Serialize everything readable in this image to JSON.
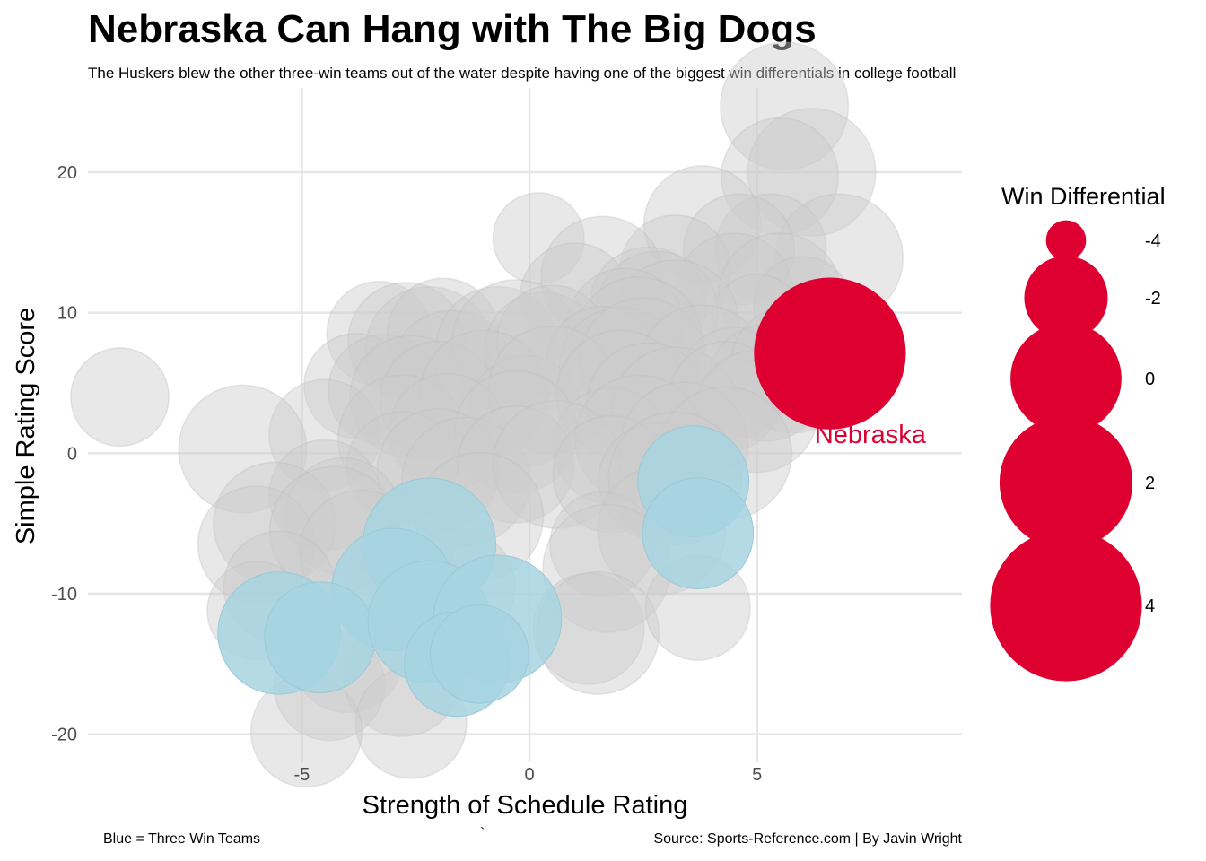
{
  "chart_data": {
    "type": "scatter",
    "title": "Nebraska Can Hang with The Big Dogs",
    "subtitle": "The Huskers blew the other three-win teams out of the water despite having one of the biggest win differentials in college football",
    "xlabel": "Strength of Schedule Rating",
    "ylabel": "Simple Rating Score",
    "xlim": [
      -9.7,
      9.5
    ],
    "ylim": [
      -22,
      26
    ],
    "x_ticks": [
      -5,
      0,
      5
    ],
    "y_ticks": [
      -20,
      -10,
      0,
      10,
      20
    ],
    "grid": true,
    "legend": {
      "title": "Win Differential",
      "placement": "right",
      "entries": [
        {
          "label": "-4",
          "value": -4
        },
        {
          "label": "-2",
          "value": -2
        },
        {
          "label": "0",
          "value": 0
        },
        {
          "label": "2",
          "value": 2
        },
        {
          "label": "4",
          "value": 4
        }
      ]
    },
    "colors": {
      "other": "#cccccc",
      "three_win": "#a6d3e0",
      "nebraska": "#dd0031"
    },
    "series": [
      {
        "group": "other",
        "points": [
          {
            "x": 5.6,
            "y": 24.7,
            "w": 1.5
          },
          {
            "x": 6.2,
            "y": 20.0,
            "w": 1.5
          },
          {
            "x": 5.5,
            "y": 19.7,
            "w": 0.5
          },
          {
            "x": 6.8,
            "y": 13.9,
            "w": 1.5
          },
          {
            "x": 3.8,
            "y": 16.3,
            "w": 0.5
          },
          {
            "x": 5.3,
            "y": 14.5,
            "w": 0.0
          },
          {
            "x": 0.2,
            "y": 15.3,
            "w": -1.5
          },
          {
            "x": 4.6,
            "y": 14.5,
            "w": 0.0
          },
          {
            "x": 3.2,
            "y": 13.0,
            "w": 0.0
          },
          {
            "x": 1.6,
            "y": 12.5,
            "w": 1.0
          },
          {
            "x": 4.5,
            "y": 11.5,
            "w": 0.5
          },
          {
            "x": 5.5,
            "y": 11.3,
            "w": 1.0
          },
          {
            "x": 6.0,
            "y": 10.5,
            "w": -1.0
          },
          {
            "x": 5.0,
            "y": 9.5,
            "w": -1.5
          },
          {
            "x": 1.0,
            "y": 11.0,
            "w": 0.0
          },
          {
            "x": 2.6,
            "y": 10.5,
            "w": 0.5
          },
          {
            "x": 2.8,
            "y": 10.0,
            "w": 1.0
          },
          {
            "x": 3.2,
            "y": 9.2,
            "w": 1.5
          },
          {
            "x": 2.1,
            "y": 9.0,
            "w": 0.5
          },
          {
            "x": 2.4,
            "y": 8.0,
            "w": 1.5
          },
          {
            "x": -3.3,
            "y": 8.5,
            "w": -0.5
          },
          {
            "x": -2.7,
            "y": 8.0,
            "w": 0.5
          },
          {
            "x": -2.2,
            "y": 7.3,
            "w": 1.5
          },
          {
            "x": -1.9,
            "y": 8.5,
            "w": 0.0
          },
          {
            "x": -1.7,
            "y": 5.8,
            "w": 1.0
          },
          {
            "x": -0.7,
            "y": 7.5,
            "w": 1.0
          },
          {
            "x": -0.3,
            "y": 7.8,
            "w": 1.5
          },
          {
            "x": 0.3,
            "y": 7.3,
            "w": 0.5
          },
          {
            "x": 0.5,
            "y": 8.0,
            "w": 0.0
          },
          {
            "x": 1.6,
            "y": 6.5,
            "w": 0.0
          },
          {
            "x": 2.0,
            "y": 6.0,
            "w": 1.0
          },
          {
            "x": 2.5,
            "y": 6.5,
            "w": 1.5
          },
          {
            "x": 3.8,
            "y": 6.0,
            "w": 1.5
          },
          {
            "x": 4.5,
            "y": 5.0,
            "w": 0.0
          },
          {
            "x": 5.2,
            "y": 5.0,
            "w": 0.5
          },
          {
            "x": 5.8,
            "y": 6.0,
            "w": 1.5
          },
          {
            "x": -3.8,
            "y": 4.8,
            "w": -0.5
          },
          {
            "x": -3.2,
            "y": 4.5,
            "w": 0.0
          },
          {
            "x": -2.6,
            "y": 4.0,
            "w": 1.0
          },
          {
            "x": -2.0,
            "y": 3.8,
            "w": 0.5
          },
          {
            "x": -1.0,
            "y": 4.2,
            "w": 1.5
          },
          {
            "x": -0.1,
            "y": 3.0,
            "w": 0.0
          },
          {
            "x": 0.5,
            "y": 4.5,
            "w": 1.5
          },
          {
            "x": 2.0,
            "y": 4.2,
            "w": 1.5
          },
          {
            "x": 2.6,
            "y": 3.5,
            "w": 1.0
          },
          {
            "x": 3.2,
            "y": 3.0,
            "w": 1.5
          },
          {
            "x": 4.3,
            "y": 4.0,
            "w": 0.0
          },
          {
            "x": 5.0,
            "y": 3.0,
            "w": 1.0
          },
          {
            "x": -9.0,
            "y": 4.0,
            "w": -1.0
          },
          {
            "x": -4.5,
            "y": 1.3,
            "w": 0.0
          },
          {
            "x": -6.3,
            "y": 0.3,
            "w": 1.5
          },
          {
            "x": -2.8,
            "y": 1.0,
            "w": 1.5
          },
          {
            "x": -1.8,
            "y": 1.5,
            "w": 0.5
          },
          {
            "x": -0.3,
            "y": 1.5,
            "w": 1.0
          },
          {
            "x": 1.8,
            "y": 0.5,
            "w": 0.5
          },
          {
            "x": 2.4,
            "y": 1.0,
            "w": 1.5
          },
          {
            "x": 3.4,
            "y": 0.5,
            "w": 1.5
          },
          {
            "x": 4.3,
            "y": 0.0,
            "w": 2.0
          },
          {
            "x": -2.8,
            "y": -1.0,
            "w": 0.0
          },
          {
            "x": -2.0,
            "y": -1.2,
            "w": 1.0
          },
          {
            "x": -1.4,
            "y": -2.0,
            "w": 1.5
          },
          {
            "x": -0.3,
            "y": -0.8,
            "w": 0.5
          },
          {
            "x": 0.6,
            "y": -0.8,
            "w": 1.5
          },
          {
            "x": 1.8,
            "y": -1.5,
            "w": 0.5
          },
          {
            "x": 2.8,
            "y": -2.0,
            "w": 0.5
          },
          {
            "x": 3.2,
            "y": -1.8,
            "w": 2.0
          },
          {
            "x": -4.5,
            "y": -3.0,
            "w": 0.0
          },
          {
            "x": -4.1,
            "y": -4.5,
            "w": 0.5
          },
          {
            "x": -5.6,
            "y": -5.0,
            "w": 1.0
          },
          {
            "x": -6.0,
            "y": -6.5,
            "w": 0.5
          },
          {
            "x": -4.3,
            "y": -5.5,
            "w": 1.5
          },
          {
            "x": -3.7,
            "y": -7.0,
            "w": 1.0
          },
          {
            "x": -1.1,
            "y": -4.5,
            "w": 1.5
          },
          {
            "x": 1.6,
            "y": -6.5,
            "w": -0.5
          },
          {
            "x": 2.9,
            "y": -5.5,
            "w": 1.5
          },
          {
            "x": -5.5,
            "y": -9.5,
            "w": 0.0
          },
          {
            "x": -6.0,
            "y": -11.2,
            "w": -1.0
          },
          {
            "x": -2.8,
            "y": -9.0,
            "w": 0.0
          },
          {
            "x": -1.6,
            "y": -9.5,
            "w": 0.5
          },
          {
            "x": 1.7,
            "y": -8.2,
            "w": 1.5
          },
          {
            "x": 1.3,
            "y": -12.5,
            "w": 0.0
          },
          {
            "x": 1.5,
            "y": -12.8,
            "w": 1.0
          },
          {
            "x": 3.7,
            "y": -11.0,
            "w": -0.5
          },
          {
            "x": -4.0,
            "y": -14.5,
            "w": 0.0
          },
          {
            "x": -4.4,
            "y": -16.5,
            "w": 0.0
          },
          {
            "x": -2.8,
            "y": -16.0,
            "w": 0.5
          },
          {
            "x": -2.6,
            "y": -19.2,
            "w": 0.0
          },
          {
            "x": -4.9,
            "y": -19.8,
            "w": 0.0
          }
        ]
      },
      {
        "group": "three_win",
        "name": "Three Win Teams",
        "points": [
          {
            "x": 3.6,
            "y": -2.0,
            "w": 0.0
          },
          {
            "x": 3.7,
            "y": -5.7,
            "w": 0.0
          },
          {
            "x": -2.2,
            "y": -6.5,
            "w": 2.0
          },
          {
            "x": -3.0,
            "y": -9.7,
            "w": 1.0
          },
          {
            "x": -5.5,
            "y": -12.8,
            "w": 1.0
          },
          {
            "x": -4.6,
            "y": -13.1,
            "w": 0.0
          },
          {
            "x": -2.2,
            "y": -12.0,
            "w": 1.0
          },
          {
            "x": -0.7,
            "y": -11.8,
            "w": 1.5
          },
          {
            "x": -1.6,
            "y": -15.0,
            "w": -0.5
          },
          {
            "x": -1.1,
            "y": -14.3,
            "w": -1.0
          }
        ]
      },
      {
        "group": "nebraska",
        "name": "Nebraska",
        "points": [
          {
            "x": 6.6,
            "y": 7.1,
            "w": 4.0
          }
        ]
      }
    ]
  },
  "captions": {
    "left": "Blue = Three Win Teams",
    "tick": "`",
    "right": "Source: Sports-Reference.com | By Javin Wright"
  }
}
